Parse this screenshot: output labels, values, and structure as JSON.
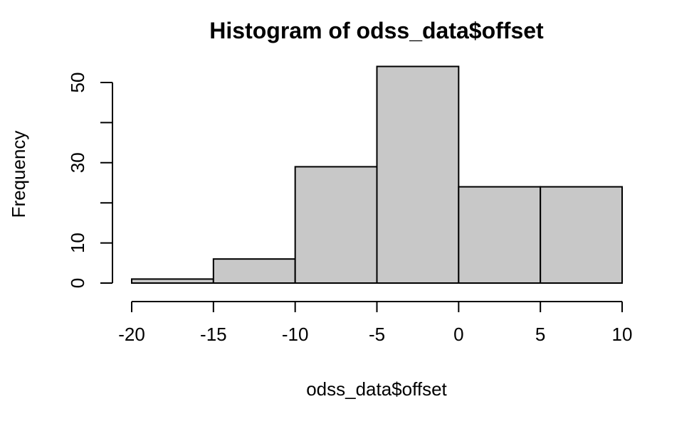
{
  "chart_data": {
    "type": "bar",
    "title": "Histogram of odss_data$offset",
    "xlabel": "odss_data$offset",
    "ylabel": "Frequency",
    "bins": [
      {
        "start": -20,
        "end": -15,
        "count": 1
      },
      {
        "start": -15,
        "end": -10,
        "count": 6
      },
      {
        "start": -10,
        "end": -5,
        "count": 29
      },
      {
        "start": -5,
        "end": 0,
        "count": 54
      },
      {
        "start": 0,
        "end": 5,
        "count": 24
      },
      {
        "start": 5,
        "end": 10,
        "count": 24
      }
    ],
    "xlim": [
      -20,
      10
    ],
    "ylim": [
      0,
      50
    ],
    "x_ticks": [
      -20,
      -15,
      -10,
      -5,
      0,
      5,
      10
    ],
    "x_tick_labels": [
      "-20",
      "-15",
      "-10",
      "-5",
      "0",
      "5",
      "10"
    ],
    "y_ticks": [
      0,
      10,
      20,
      30,
      40,
      50
    ],
    "y_tick_labels": [
      "0",
      "10",
      "",
      "30",
      "",
      "50"
    ],
    "bar_fill": "#c8c8c8",
    "bar_stroke": "#000000",
    "grid": false,
    "legend": "none"
  }
}
